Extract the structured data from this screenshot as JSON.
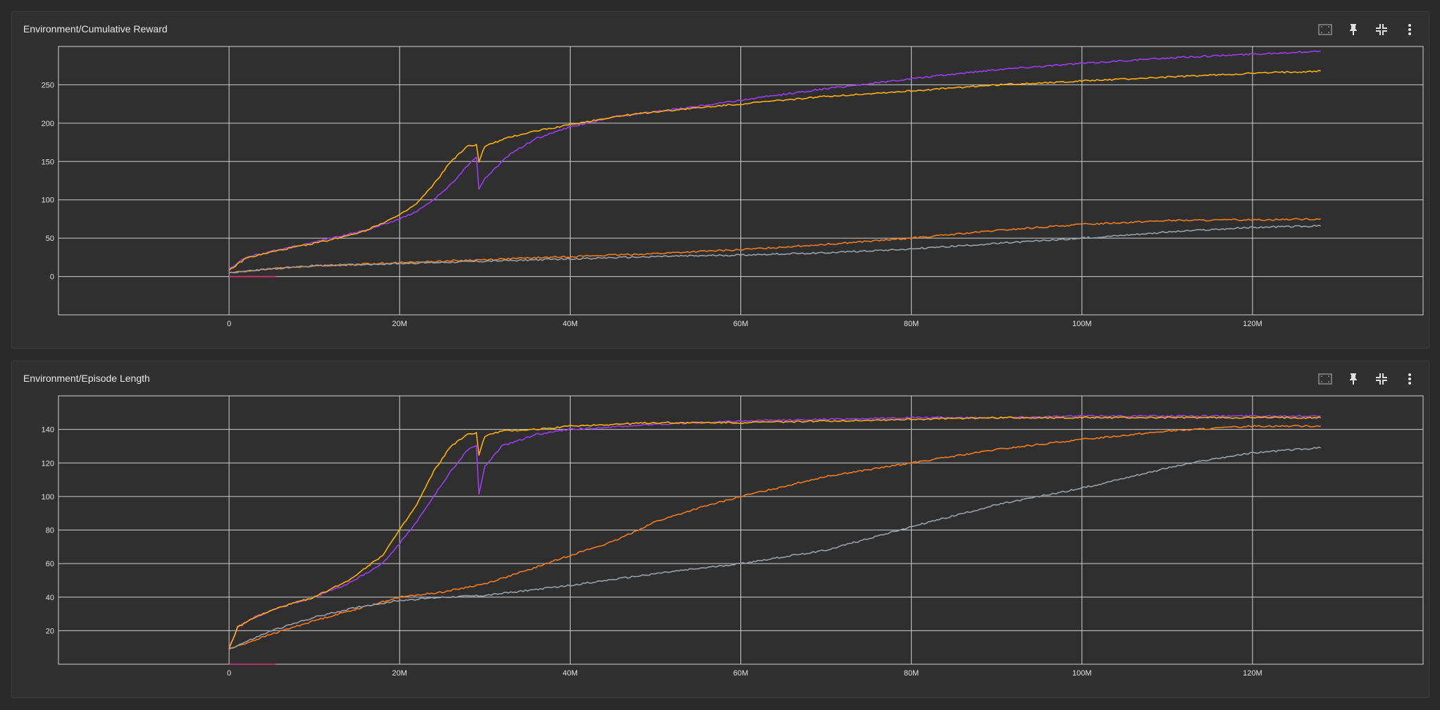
{
  "charts": [
    {
      "title": "Environment/Cumulative Reward",
      "chart_data": {
        "type": "line",
        "xlim": [
          -20,
          140
        ],
        "ylim": [
          -50,
          300
        ],
        "xticks": [
          0,
          20,
          40,
          60,
          80,
          100,
          120
        ],
        "xtick_labels": [
          "0",
          "20M",
          "40M",
          "60M",
          "80M",
          "100M",
          "120M"
        ],
        "yticks": [
          0,
          50,
          100,
          150,
          200,
          250
        ],
        "ytick_labels": [
          "0",
          "50",
          "100",
          "150",
          "200",
          "250"
        ],
        "grid": true,
        "series": [
          {
            "color": "#9b3df0",
            "points": [
              [
                0,
                10
              ],
              [
                2,
                25
              ],
              [
                5,
                33
              ],
              [
                8,
                40
              ],
              [
                12,
                50
              ],
              [
                16,
                60
              ],
              [
                20,
                75
              ],
              [
                22,
                85
              ],
              [
                24,
                100
              ],
              [
                26,
                120
              ],
              [
                28,
                145
              ],
              [
                29,
                155
              ],
              [
                29.3,
                115
              ],
              [
                30,
                128
              ],
              [
                33,
                160
              ],
              [
                36,
                180
              ],
              [
                40,
                195
              ],
              [
                45,
                208
              ],
              [
                50,
                215
              ],
              [
                55,
                222
              ],
              [
                60,
                230
              ],
              [
                70,
                245
              ],
              [
                80,
                258
              ],
              [
                90,
                270
              ],
              [
                100,
                278
              ],
              [
                110,
                285
              ],
              [
                120,
                290
              ],
              [
                128,
                294
              ]
            ]
          },
          {
            "color": "#ffb000",
            "points": [
              [
                0,
                8
              ],
              [
                2,
                24
              ],
              [
                5,
                32
              ],
              [
                8,
                39
              ],
              [
                12,
                48
              ],
              [
                16,
                60
              ],
              [
                20,
                80
              ],
              [
                22,
                95
              ],
              [
                24,
                120
              ],
              [
                26,
                150
              ],
              [
                28,
                170
              ],
              [
                29,
                172
              ],
              [
                29.3,
                150
              ],
              [
                30,
                170
              ],
              [
                33,
                182
              ],
              [
                36,
                190
              ],
              [
                40,
                198
              ],
              [
                45,
                208
              ],
              [
                50,
                215
              ],
              [
                55,
                220
              ],
              [
                60,
                225
              ],
              [
                70,
                235
              ],
              [
                80,
                242
              ],
              [
                90,
                250
              ],
              [
                100,
                255
              ],
              [
                110,
                260
              ],
              [
                120,
                265
              ],
              [
                128,
                268
              ]
            ]
          },
          {
            "color": "#f07c1a",
            "points": [
              [
                0,
                5
              ],
              [
                5,
                10
              ],
              [
                10,
                14
              ],
              [
                20,
                18
              ],
              [
                30,
                22
              ],
              [
                40,
                26
              ],
              [
                50,
                30
              ],
              [
                60,
                35
              ],
              [
                70,
                42
              ],
              [
                80,
                50
              ],
              [
                90,
                60
              ],
              [
                100,
                68
              ],
              [
                110,
                73
              ],
              [
                120,
                74
              ],
              [
                128,
                75
              ]
            ]
          },
          {
            "color": "#9aa0a6",
            "points": [
              [
                0,
                5
              ],
              [
                5,
                10
              ],
              [
                10,
                14
              ],
              [
                20,
                17
              ],
              [
                30,
                20
              ],
              [
                40,
                23
              ],
              [
                50,
                26
              ],
              [
                60,
                28
              ],
              [
                70,
                31
              ],
              [
                80,
                36
              ],
              [
                90,
                43
              ],
              [
                100,
                50
              ],
              [
                110,
                58
              ],
              [
                120,
                64
              ],
              [
                128,
                66
              ]
            ]
          },
          {
            "color": "#e0307a",
            "points": [
              [
                0,
                0
              ],
              [
                5.5,
                0
              ]
            ]
          }
        ]
      }
    },
    {
      "title": "Environment/Episode Length",
      "chart_data": {
        "type": "line",
        "xlim": [
          -20,
          140
        ],
        "ylim": [
          0,
          160
        ],
        "xticks": [
          0,
          20,
          40,
          60,
          80,
          100,
          120
        ],
        "xtick_labels": [
          "0",
          "20M",
          "40M",
          "60M",
          "80M",
          "100M",
          "120M"
        ],
        "yticks": [
          20,
          40,
          60,
          80,
          100,
          120,
          140
        ],
        "ytick_labels": [
          "20",
          "40",
          "60",
          "80",
          "100",
          "120",
          "140"
        ],
        "grid": true,
        "series": [
          {
            "color": "#9b3df0",
            "points": [
              [
                0,
                10
              ],
              [
                1,
                22
              ],
              [
                3,
                28
              ],
              [
                6,
                34
              ],
              [
                10,
                40
              ],
              [
                14,
                48
              ],
              [
                18,
                60
              ],
              [
                20,
                72
              ],
              [
                22,
                85
              ],
              [
                24,
                100
              ],
              [
                26,
                115
              ],
              [
                28,
                128
              ],
              [
                29,
                130
              ],
              [
                29.3,
                102
              ],
              [
                30,
                118
              ],
              [
                32,
                130
              ],
              [
                36,
                137
              ],
              [
                40,
                140
              ],
              [
                50,
                143
              ],
              [
                60,
                145
              ],
              [
                70,
                146
              ],
              [
                80,
                147
              ],
              [
                90,
                147
              ],
              [
                100,
                148
              ],
              [
                110,
                148
              ],
              [
                120,
                148
              ],
              [
                128,
                148
              ]
            ]
          },
          {
            "color": "#ffb000",
            "points": [
              [
                0,
                9
              ],
              [
                1,
                22
              ],
              [
                3,
                28
              ],
              [
                6,
                34
              ],
              [
                10,
                40
              ],
              [
                14,
                50
              ],
              [
                18,
                65
              ],
              [
                20,
                80
              ],
              [
                22,
                95
              ],
              [
                24,
                115
              ],
              [
                26,
                130
              ],
              [
                28,
                137
              ],
              [
                29,
                138
              ],
              [
                29.3,
                125
              ],
              [
                30,
                136
              ],
              [
                32,
                139
              ],
              [
                36,
                140
              ],
              [
                40,
                142
              ],
              [
                50,
                144
              ],
              [
                60,
                144
              ],
              [
                70,
                145
              ],
              [
                80,
                146
              ],
              [
                90,
                147
              ],
              [
                100,
                147
              ],
              [
                110,
                147
              ],
              [
                120,
                147
              ],
              [
                128,
                147
              ]
            ]
          },
          {
            "color": "#f07c1a",
            "points": [
              [
                0,
                9
              ],
              [
                5,
                18
              ],
              [
                10,
                26
              ],
              [
                15,
                33
              ],
              [
                20,
                40
              ],
              [
                25,
                43
              ],
              [
                30,
                48
              ],
              [
                35,
                56
              ],
              [
                40,
                65
              ],
              [
                45,
                73
              ],
              [
                50,
                85
              ],
              [
                55,
                93
              ],
              [
                60,
                100
              ],
              [
                70,
                112
              ],
              [
                80,
                120
              ],
              [
                90,
                128
              ],
              [
                100,
                134
              ],
              [
                110,
                139
              ],
              [
                120,
                142
              ],
              [
                125,
                142
              ],
              [
                128,
                142
              ]
            ]
          },
          {
            "color": "#9aa0a6",
            "points": [
              [
                0,
                9
              ],
              [
                5,
                20
              ],
              [
                10,
                28
              ],
              [
                15,
                34
              ],
              [
                20,
                38
              ],
              [
                25,
                40
              ],
              [
                30,
                41
              ],
              [
                35,
                44
              ],
              [
                40,
                47
              ],
              [
                50,
                54
              ],
              [
                60,
                60
              ],
              [
                70,
                68
              ],
              [
                80,
                82
              ],
              [
                90,
                95
              ],
              [
                100,
                105
              ],
              [
                110,
                117
              ],
              [
                115,
                122
              ],
              [
                120,
                126
              ],
              [
                125,
                128
              ],
              [
                128,
                129
              ]
            ]
          },
          {
            "color": "#e0307a",
            "points": [
              [
                0,
                0
              ],
              [
                5.5,
                0
              ]
            ]
          }
        ]
      }
    }
  ]
}
